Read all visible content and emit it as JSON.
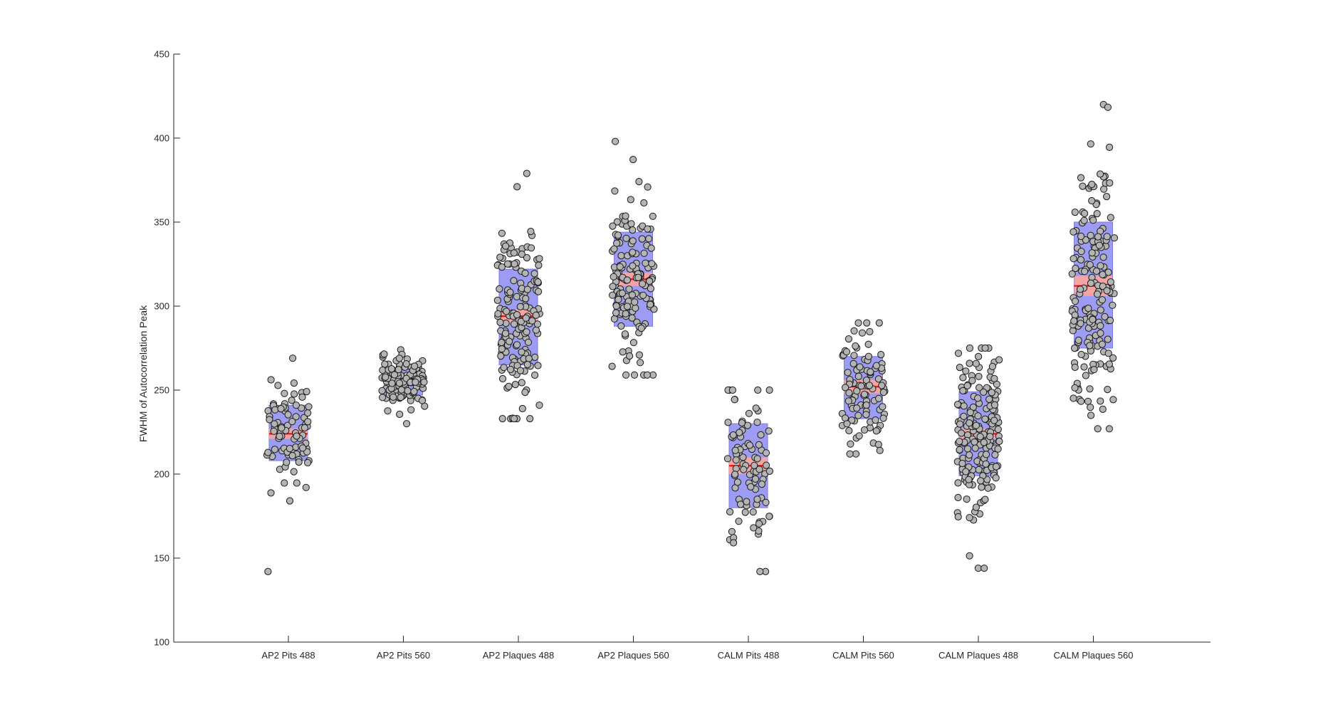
{
  "chart_data": {
    "type": "scatter",
    "subtype": "beeswarm with box overlay (notBoxPlot)",
    "title": "",
    "xlabel": "",
    "ylabel": "FWHM of Autocorrelation Peak",
    "ylim": [
      100,
      450
    ],
    "yticks": [
      100,
      150,
      200,
      250,
      300,
      350,
      400,
      450
    ],
    "grid": false,
    "legend": "none",
    "colors": {
      "box": "#9c9cf4",
      "box_stroke": "#7a7ae6",
      "mean_band": "#f4a4a4",
      "mean_line": "#ff0000",
      "point_fill": "#b4b4b4",
      "point_stroke": "#1a1a1a",
      "axis": "#262626"
    },
    "categories": [
      "AP2 Pits 488",
      "AP2 Pits 560",
      "AP2 Plaques 488",
      "AP2 Plaques 560",
      "CALM Pits 488",
      "CALM Pits 560",
      "CALM Plaques 488",
      "CALM Plaques 560"
    ],
    "groups": [
      {
        "category": "AP2 Pits 488",
        "n": 90,
        "mean": 224,
        "sem_low": 221,
        "sem_high": 227,
        "sd_low": 208,
        "sd_high": 241,
        "min": 142,
        "max": 269
      },
      {
        "category": "AP2 Pits 560",
        "n": 130,
        "mean": 255,
        "sem_low": 254,
        "sem_high": 256,
        "sd_low": 247,
        "sd_high": 263,
        "min": 230,
        "max": 274
      },
      {
        "category": "AP2 Plaques 488",
        "n": 160,
        "mean": 294,
        "sem_low": 290,
        "sem_high": 298,
        "sd_low": 265,
        "sd_high": 322,
        "min": 233,
        "max": 379
      },
      {
        "category": "AP2 Plaques 560",
        "n": 150,
        "mean": 316,
        "sem_low": 312,
        "sem_high": 320,
        "sd_low": 288,
        "sd_high": 344,
        "min": 259,
        "max": 398
      },
      {
        "category": "CALM Pits 488",
        "n": 90,
        "mean": 205,
        "sem_low": 200,
        "sem_high": 210,
        "sd_low": 180,
        "sd_high": 230,
        "min": 142,
        "max": 250
      },
      {
        "category": "CALM Pits 560",
        "n": 100,
        "mean": 252,
        "sem_low": 248,
        "sem_high": 256,
        "sd_low": 233,
        "sd_high": 270,
        "min": 212,
        "max": 290
      },
      {
        "category": "CALM Plaques 488",
        "n": 180,
        "mean": 224,
        "sem_low": 221,
        "sem_high": 227,
        "sd_low": 199,
        "sd_high": 249,
        "min": 144,
        "max": 275
      },
      {
        "category": "CALM Plaques 560",
        "n": 180,
        "mean": 312,
        "sem_low": 306,
        "sem_high": 318,
        "sd_low": 275,
        "sd_high": 350,
        "min": 227,
        "max": 420
      }
    ]
  }
}
